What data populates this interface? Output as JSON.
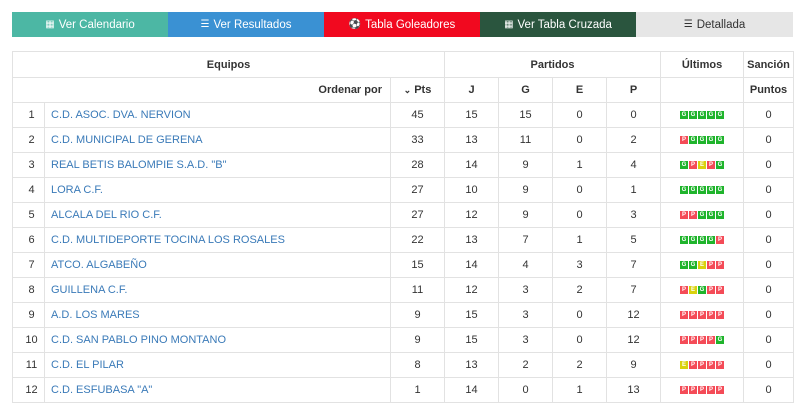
{
  "tabs": [
    {
      "label": "Ver Calendario",
      "icon": "calendar-icon"
    },
    {
      "label": "Ver Resultados",
      "icon": "list-icon"
    },
    {
      "label": "Tabla Goleadores",
      "icon": "soccer-ball-icon"
    },
    {
      "label": "Ver Tabla Cruzada",
      "icon": "table-grid-icon"
    },
    {
      "label": "Detallada",
      "icon": "list-detail-icon"
    }
  ],
  "table": {
    "headers": {
      "equipos": "Equipos",
      "partidos": "Partidos",
      "ultimos": "Últimos",
      "sancion": "Sanción",
      "ordenar_por": "Ordenar por",
      "pts": "Pts",
      "j": "J",
      "g": "G",
      "e": "E",
      "p": "P",
      "puntos": "Puntos"
    },
    "rows": [
      {
        "pos": "1",
        "team": "C.D. ASOC. DVA. NERVION",
        "pts": "45",
        "j": "15",
        "g": "15",
        "e": "0",
        "p": "0",
        "last": [
          "G",
          "G",
          "G",
          "G",
          "G"
        ],
        "sancion": "0"
      },
      {
        "pos": "2",
        "team": "C.D. MUNICIPAL DE GERENA",
        "pts": "33",
        "j": "13",
        "g": "11",
        "e": "0",
        "p": "2",
        "last": [
          "P",
          "G",
          "G",
          "G",
          "G"
        ],
        "sancion": "0"
      },
      {
        "pos": "3",
        "team": "REAL BETIS BALOMPIE S.A.D. \"B\"",
        "pts": "28",
        "j": "14",
        "g": "9",
        "e": "1",
        "p": "4",
        "last": [
          "G",
          "P",
          "E",
          "P",
          "G"
        ],
        "sancion": "0"
      },
      {
        "pos": "4",
        "team": "LORA C.F.",
        "pts": "27",
        "j": "10",
        "g": "9",
        "e": "0",
        "p": "1",
        "last": [
          "G",
          "G",
          "G",
          "G",
          "G"
        ],
        "sancion": "0"
      },
      {
        "pos": "5",
        "team": "ALCALA DEL RIO C.F.",
        "pts": "27",
        "j": "12",
        "g": "9",
        "e": "0",
        "p": "3",
        "last": [
          "P",
          "P",
          "G",
          "G",
          "G"
        ],
        "sancion": "0"
      },
      {
        "pos": "6",
        "team": "C.D. MULTIDEPORTE TOCINA LOS ROSALES",
        "pts": "22",
        "j": "13",
        "g": "7",
        "e": "1",
        "p": "5",
        "last": [
          "G",
          "G",
          "G",
          "G",
          "P"
        ],
        "sancion": "0"
      },
      {
        "pos": "7",
        "team": "ATCO. ALGABEÑO",
        "pts": "15",
        "j": "14",
        "g": "4",
        "e": "3",
        "p": "7",
        "last": [
          "G",
          "G",
          "E",
          "P",
          "P"
        ],
        "sancion": "0"
      },
      {
        "pos": "8",
        "team": "GUILLENA C.F.",
        "pts": "11",
        "j": "12",
        "g": "3",
        "e": "2",
        "p": "7",
        "last": [
          "P",
          "E",
          "G",
          "P",
          "P"
        ],
        "sancion": "0"
      },
      {
        "pos": "9",
        "team": "A.D. LOS MARES",
        "pts": "9",
        "j": "15",
        "g": "3",
        "e": "0",
        "p": "12",
        "last": [
          "P",
          "P",
          "P",
          "P",
          "P"
        ],
        "sancion": "0"
      },
      {
        "pos": "10",
        "team": "C.D. SAN PABLO PINO MONTANO",
        "pts": "9",
        "j": "15",
        "g": "3",
        "e": "0",
        "p": "12",
        "last": [
          "P",
          "P",
          "P",
          "P",
          "G"
        ],
        "sancion": "0"
      },
      {
        "pos": "11",
        "team": "C.D. EL PILAR",
        "pts": "8",
        "j": "13",
        "g": "2",
        "e": "2",
        "p": "9",
        "last": [
          "E",
          "P",
          "P",
          "P",
          "P"
        ],
        "sancion": "0"
      },
      {
        "pos": "12",
        "team": "C.D. ESFUBASA \"A\"",
        "pts": "1",
        "j": "14",
        "g": "0",
        "e": "1",
        "p": "13",
        "last": [
          "P",
          "P",
          "P",
          "P",
          "P"
        ],
        "sancion": "0"
      }
    ]
  }
}
